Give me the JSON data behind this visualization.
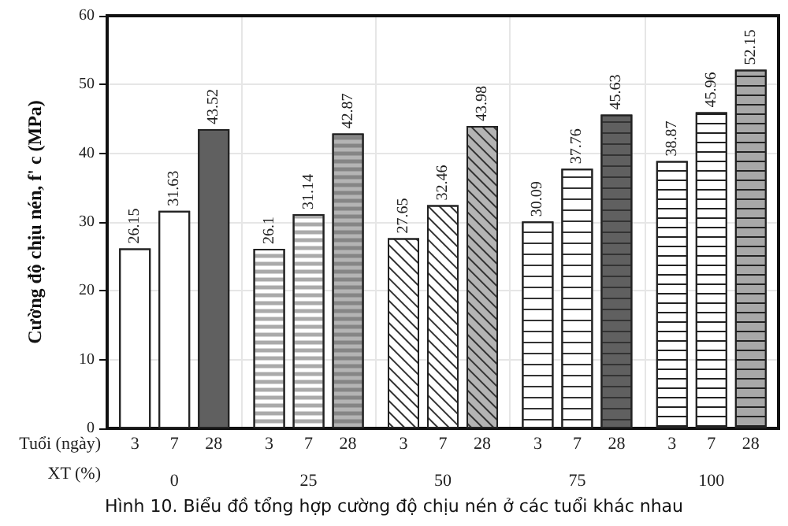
{
  "chart_data": {
    "type": "bar",
    "title": "Hình 10. Biểu đồ tổng hợp cường độ chịu nén ở các tuổi khác nhau",
    "categories": [
      "0",
      "25",
      "50",
      "75",
      "100"
    ],
    "xlabel": "XT (%)",
    "ylabel": "Cường độ chịu nén, f' c (MPa)",
    "annotations": [
      "Tuổi (ngày)"
    ],
    "series": [
      {
        "name": "3",
        "colors": [
          "#ffffff",
          "#ffffff",
          "#ffffff",
          "#ffffff",
          "#ffffff"
        ],
        "values": [
          26.15,
          26.1,
          27.65,
          30.09,
          38.87
        ]
      },
      {
        "name": "7",
        "colors": [
          "#ffffff",
          "#ffffff",
          "#ffffff",
          "#ffffff",
          "#ffffff"
        ],
        "values": [
          31.63,
          31.14,
          32.46,
          37.76,
          45.96
        ]
      },
      {
        "name": "28",
        "colors": [
          "#606060",
          "#b4b4b4",
          "#b4b4b4",
          "#606060",
          "#a8a8a8"
        ],
        "values": [
          43.52,
          42.87,
          43.98,
          45.63,
          52.15
        ]
      }
    ],
    "ylim": [
      0,
      60
    ],
    "yticks": [
      0,
      10,
      20,
      30,
      40,
      50,
      60
    ],
    "grid": true,
    "data_labels": true,
    "legend": false
  }
}
